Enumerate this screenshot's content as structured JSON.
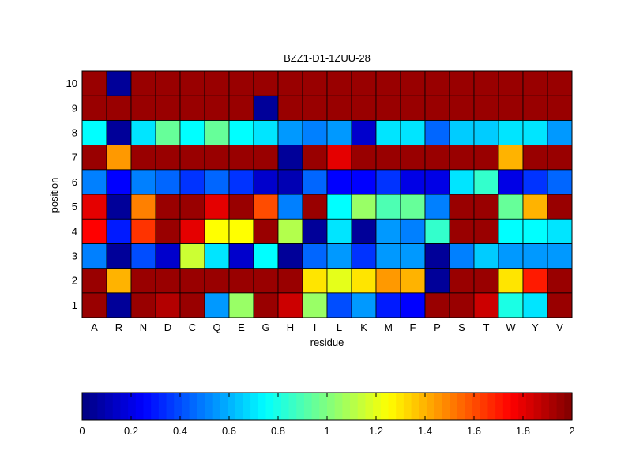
{
  "chart_data": {
    "type": "heatmap",
    "title": "BZZ1-D1-1ZUU-28",
    "xlabel": "residue",
    "ylabel": "position",
    "x_categories": [
      "A",
      "R",
      "N",
      "D",
      "C",
      "Q",
      "E",
      "G",
      "H",
      "I",
      "L",
      "K",
      "M",
      "F",
      "P",
      "S",
      "T",
      "W",
      "Y",
      "V"
    ],
    "y_categories": [
      "1",
      "2",
      "3",
      "4",
      "5",
      "6",
      "7",
      "8",
      "9",
      "10"
    ],
    "values": [
      [
        1.95,
        0.05,
        1.95,
        1.9,
        1.95,
        0.55,
        1.05,
        1.95,
        1.85,
        1.05,
        0.4,
        0.55,
        0.3,
        0.25,
        1.95,
        1.95,
        1.85,
        0.8,
        0.7,
        1.95
      ],
      [
        1.95,
        1.4,
        1.95,
        1.95,
        1.95,
        1.95,
        1.95,
        1.95,
        1.95,
        1.3,
        1.2,
        1.3,
        1.45,
        1.4,
        0.05,
        1.95,
        1.95,
        1.3,
        1.7,
        1.95
      ],
      [
        0.5,
        0.05,
        0.4,
        0.15,
        1.15,
        0.7,
        0.15,
        0.75,
        0.05,
        0.45,
        0.55,
        0.35,
        0.55,
        0.55,
        0.05,
        0.5,
        0.65,
        0.55,
        0.55,
        0.55
      ],
      [
        1.75,
        0.3,
        1.65,
        1.95,
        1.8,
        1.25,
        1.25,
        1.95,
        1.1,
        0.05,
        0.7,
        0.05,
        0.55,
        0.5,
        0.85,
        1.95,
        1.95,
        0.75,
        0.75,
        0.7
      ],
      [
        1.8,
        0.05,
        1.5,
        1.95,
        1.95,
        1.8,
        1.95,
        1.6,
        0.5,
        1.95,
        0.75,
        1.05,
        0.9,
        0.95,
        0.5,
        1.95,
        1.95,
        0.95,
        1.4,
        1.95
      ],
      [
        0.5,
        0.25,
        0.5,
        0.45,
        0.35,
        0.45,
        0.35,
        0.15,
        0.1,
        0.45,
        0.25,
        0.25,
        0.35,
        0.2,
        0.2,
        0.7,
        0.85,
        0.2,
        0.35,
        0.45
      ],
      [
        1.95,
        1.45,
        1.95,
        1.95,
        1.95,
        1.95,
        1.95,
        1.95,
        0.05,
        1.95,
        1.8,
        1.95,
        1.95,
        1.95,
        1.95,
        1.95,
        1.95,
        1.4,
        1.95,
        1.95
      ],
      [
        0.75,
        0.05,
        0.7,
        0.95,
        0.75,
        0.95,
        0.75,
        0.7,
        0.55,
        0.5,
        0.55,
        0.15,
        0.7,
        0.7,
        0.45,
        0.65,
        0.65,
        0.7,
        0.7,
        0.55
      ],
      [
        1.95,
        1.95,
        1.95,
        1.95,
        1.95,
        1.95,
        1.95,
        0.05,
        1.95,
        1.95,
        1.95,
        1.95,
        1.95,
        1.95,
        1.95,
        1.95,
        1.95,
        1.95,
        1.95,
        1.95
      ],
      [
        1.95,
        0.05,
        1.95,
        1.95,
        1.95,
        1.95,
        1.95,
        1.95,
        1.95,
        1.95,
        1.95,
        1.95,
        1.95,
        1.95,
        1.95,
        1.95,
        1.95,
        1.95,
        1.95,
        1.95
      ]
    ],
    "colormap": "jet",
    "clim": [
      0,
      2
    ],
    "colorbar": {
      "orientation": "horizontal",
      "placement": "bottom",
      "ticks": [
        "0",
        "0.2",
        "0.4",
        "0.6",
        "0.8",
        "1",
        "1.2",
        "1.4",
        "1.6",
        "1.8",
        "2"
      ]
    }
  }
}
